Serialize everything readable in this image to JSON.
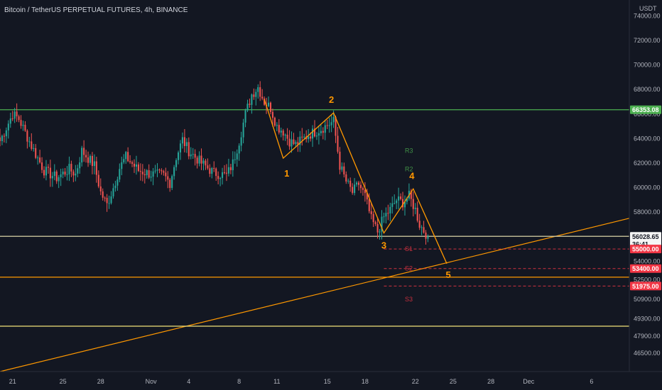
{
  "chart_data": {
    "type": "candlestick",
    "title": "Bitcoin / TetherUS PERPETUAL FUTURES, 4h, BINANCE",
    "y_unit": "USDT",
    "ylim": [
      45000,
      75300
    ],
    "y_ticks": [
      74000,
      72000,
      70000,
      68000,
      66000,
      64000,
      62000,
      60000,
      58000,
      56000,
      54000,
      52500,
      50900,
      49300,
      47900,
      46500
    ],
    "y_tick_labels": [
      "74000.00",
      "72000.00",
      "70000.00",
      "68000.00",
      "66000.00",
      "64000.00",
      "62000.00",
      "60000.00",
      "58000.00",
      "56000.00",
      "54000.00",
      "52500.00",
      "50900.00",
      "49300.00",
      "47900.00",
      "46500.00"
    ],
    "x_range": [
      "2021-10-20T00:00",
      "2021-12-09T00:00"
    ],
    "x_ticks": [
      {
        "label": "21",
        "date": "2021-10-21"
      },
      {
        "label": "25",
        "date": "2021-10-25"
      },
      {
        "label": "28",
        "date": "2021-10-28"
      },
      {
        "label": "Nov",
        "date": "2021-11-01"
      },
      {
        "label": "4",
        "date": "2021-11-04"
      },
      {
        "label": "8",
        "date": "2021-11-08"
      },
      {
        "label": "11",
        "date": "2021-11-11"
      },
      {
        "label": "15",
        "date": "2021-11-15"
      },
      {
        "label": "18",
        "date": "2021-11-18"
      },
      {
        "label": "22",
        "date": "2021-11-22"
      },
      {
        "label": "25",
        "date": "2021-11-25"
      },
      {
        "label": "28",
        "date": "2021-11-28"
      },
      {
        "label": "Dec",
        "date": "2021-12-01"
      },
      {
        "label": "6",
        "date": "2021-12-06"
      }
    ],
    "candle_anchors": [
      {
        "date": "2021-10-20T00:00",
        "close": 63800
      },
      {
        "date": "2021-10-21T00:00",
        "close": 66000
      },
      {
        "date": "2021-10-21T12:00",
        "close": 65600
      },
      {
        "date": "2021-10-22T12:00",
        "close": 63400
      },
      {
        "date": "2021-10-23T12:00",
        "close": 61400
      },
      {
        "date": "2021-10-24T12:00",
        "close": 60800
      },
      {
        "date": "2021-10-25T12:00",
        "close": 61500
      },
      {
        "date": "2021-10-26T00:00",
        "close": 61100
      },
      {
        "date": "2021-10-26T12:00",
        "close": 63000
      },
      {
        "date": "2021-10-27T12:00",
        "close": 61800
      },
      {
        "date": "2021-10-28T00:00",
        "close": 59600
      },
      {
        "date": "2021-10-28T12:00",
        "close": 58600
      },
      {
        "date": "2021-10-29T00:00",
        "close": 60000
      },
      {
        "date": "2021-10-29T12:00",
        "close": 61600
      },
      {
        "date": "2021-10-30T00:00",
        "close": 62500
      },
      {
        "date": "2021-10-31T00:00",
        "close": 61400
      },
      {
        "date": "2021-11-01T00:00",
        "close": 61100
      },
      {
        "date": "2021-11-02T00:00",
        "close": 61000
      },
      {
        "date": "2021-11-02T12:00",
        "close": 60400
      },
      {
        "date": "2021-11-03T00:00",
        "close": 62500
      },
      {
        "date": "2021-11-03T12:00",
        "close": 63900
      },
      {
        "date": "2021-11-04T00:00",
        "close": 63000
      },
      {
        "date": "2021-11-05T00:00",
        "close": 62000
      },
      {
        "date": "2021-11-06T00:00",
        "close": 61200
      },
      {
        "date": "2021-11-07T00:00",
        "close": 61000
      },
      {
        "date": "2021-11-07T12:00",
        "close": 62000
      },
      {
        "date": "2021-11-08T00:00",
        "close": 63800
      },
      {
        "date": "2021-11-08T12:00",
        "close": 66000
      },
      {
        "date": "2021-11-09T00:00",
        "close": 67600
      },
      {
        "date": "2021-11-09T12:00",
        "close": 68200
      },
      {
        "date": "2021-11-10T00:00",
        "close": 67000
      },
      {
        "date": "2021-11-10T12:00",
        "close": 66500
      },
      {
        "date": "2021-11-11T00:00",
        "close": 65000
      },
      {
        "date": "2021-11-11T12:00",
        "close": 64600
      },
      {
        "date": "2021-11-12T00:00",
        "close": 63800
      },
      {
        "date": "2021-11-12T12:00",
        "close": 63500
      },
      {
        "date": "2021-11-13T12:00",
        "close": 64300
      },
      {
        "date": "2021-11-14T12:00",
        "close": 64800
      },
      {
        "date": "2021-11-15T12:00",
        "close": 65400
      },
      {
        "date": "2021-11-16T00:00",
        "close": 61800
      },
      {
        "date": "2021-11-16T12:00",
        "close": 60500
      },
      {
        "date": "2021-11-17T00:00",
        "close": 59600
      },
      {
        "date": "2021-11-17T12:00",
        "close": 60300
      },
      {
        "date": "2021-11-18T00:00",
        "close": 59300
      },
      {
        "date": "2021-11-18T12:00",
        "close": 57400
      },
      {
        "date": "2021-11-19T00:00",
        "close": 56400
      },
      {
        "date": "2021-11-19T12:00",
        "close": 57600
      },
      {
        "date": "2021-11-20T00:00",
        "close": 58200
      },
      {
        "date": "2021-11-20T12:00",
        "close": 59000
      },
      {
        "date": "2021-11-21T00:00",
        "close": 58800
      },
      {
        "date": "2021-11-21T12:00",
        "close": 59300
      },
      {
        "date": "2021-11-22T00:00",
        "close": 58200
      },
      {
        "date": "2021-11-22T08:00",
        "close": 57000
      },
      {
        "date": "2021-11-22T16:00",
        "close": 56500
      },
      {
        "date": "2021-11-23T00:00",
        "close": 56028.65
      }
    ],
    "horizontal_levels": [
      {
        "price": 66353.08,
        "label": "66353.08",
        "color": "#4caf50",
        "style": "solid"
      },
      {
        "price": 56028.65,
        "label": "56028.65",
        "color": "#d9d2a6",
        "style": "solid"
      },
      {
        "price": 52700,
        "color": "#ff9800",
        "style": "solid"
      },
      {
        "price": 48700,
        "color": "#f2e27a",
        "style": "solid"
      }
    ],
    "dashed_levels": [
      {
        "price": 55000,
        "label": "55000.00",
        "color": "#f23645"
      },
      {
        "price": 53400,
        "label": "53400.00",
        "color": "#f23645"
      },
      {
        "price": 51975,
        "label": "51975.00",
        "color": "#f23645"
      }
    ],
    "trendline": {
      "from": {
        "date": "2021-10-20T00:00",
        "price": 45000
      },
      "to": {
        "date": "2021-12-09T00:00",
        "price": 57500
      },
      "color": "#ff9800"
    },
    "elliott_wave": {
      "color": "#ff9800",
      "points": [
        {
          "date": "2021-11-10T00:00",
          "price": 67200
        },
        {
          "date": "2021-11-11T12:00",
          "price": 62400,
          "label": "1"
        },
        {
          "date": "2021-11-15T12:00",
          "price": 66100,
          "label": "2"
        },
        {
          "date": "2021-11-19T12:00",
          "price": 56300,
          "label": "3"
        },
        {
          "date": "2021-11-21T20:00",
          "price": 59900,
          "label": "4"
        },
        {
          "date": "2021-11-24T12:00",
          "price": 53800,
          "label": "5"
        }
      ]
    },
    "pivots": [
      {
        "label": "R3",
        "date": "2021-11-21T00:00",
        "price": 63000,
        "color": "#4caf50"
      },
      {
        "label": "R2",
        "date": "2021-11-21T00:00",
        "price": 61500,
        "color": "#4caf50"
      },
      {
        "label": "S1",
        "date": "2021-11-21T00:00",
        "price": 55000,
        "color": "#f23645"
      },
      {
        "label": "S2",
        "date": "2021-11-21T00:00",
        "price": 53400,
        "color": "#f23645"
      },
      {
        "label": "S3",
        "date": "2021-11-21T00:00",
        "price": 50900,
        "color": "#f23645"
      }
    ],
    "countdown": "36:41"
  },
  "colors": {
    "background": "#131722",
    "bull": "#26a69a",
    "bear": "#ef5350",
    "axis_text": "#b2b5be",
    "title_text": "#d1d4dc"
  }
}
